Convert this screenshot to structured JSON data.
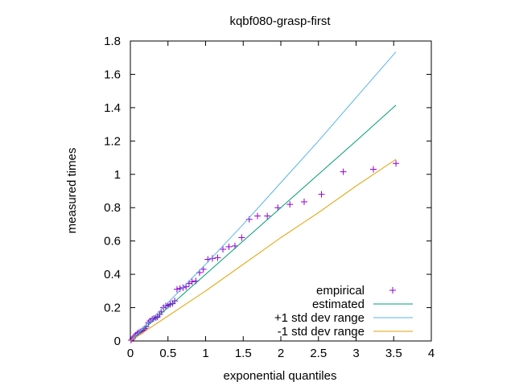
{
  "chart_data": {
    "type": "scatter",
    "title": "kqbf080-grasp-first",
    "xlabel": "exponential quantiles",
    "ylabel": "measured times",
    "xlim": [
      0,
      4
    ],
    "ylim": [
      0,
      1.8
    ],
    "xticks": [
      "0",
      "0.5",
      "1",
      "1.5",
      "2",
      "2.5",
      "3",
      "3.5",
      "4"
    ],
    "yticks": [
      "0",
      "0.2",
      "0.4",
      "0.6",
      "0.8",
      "1",
      "1.2",
      "1.4",
      "1.6",
      "1.8"
    ],
    "grid": false,
    "legend_position": "bottom-right",
    "series": [
      {
        "name": "empirical",
        "kind": "points",
        "marker": "+",
        "color": "#9400d3",
        "points": [
          [
            0.01,
            0.005
          ],
          [
            0.03,
            0.015
          ],
          [
            0.05,
            0.025
          ],
          [
            0.07,
            0.035
          ],
          [
            0.09,
            0.045
          ],
          [
            0.11,
            0.05
          ],
          [
            0.13,
            0.055
          ],
          [
            0.15,
            0.06
          ],
          [
            0.17,
            0.065
          ],
          [
            0.19,
            0.075
          ],
          [
            0.21,
            0.085
          ],
          [
            0.24,
            0.11
          ],
          [
            0.26,
            0.12
          ],
          [
            0.29,
            0.13
          ],
          [
            0.31,
            0.135
          ],
          [
            0.34,
            0.14
          ],
          [
            0.36,
            0.145
          ],
          [
            0.39,
            0.16
          ],
          [
            0.41,
            0.175
          ],
          [
            0.44,
            0.2
          ],
          [
            0.47,
            0.21
          ],
          [
            0.5,
            0.215
          ],
          [
            0.53,
            0.22
          ],
          [
            0.56,
            0.225
          ],
          [
            0.59,
            0.24
          ],
          [
            0.62,
            0.31
          ],
          [
            0.66,
            0.315
          ],
          [
            0.7,
            0.32
          ],
          [
            0.74,
            0.325
          ],
          [
            0.78,
            0.345
          ],
          [
            0.82,
            0.355
          ],
          [
            0.87,
            0.36
          ],
          [
            0.92,
            0.41
          ],
          [
            0.97,
            0.43
          ],
          [
            1.03,
            0.49
          ],
          [
            1.09,
            0.495
          ],
          [
            1.16,
            0.5
          ],
          [
            1.23,
            0.55
          ],
          [
            1.31,
            0.565
          ],
          [
            1.39,
            0.57
          ],
          [
            1.48,
            0.62
          ],
          [
            1.58,
            0.73
          ],
          [
            1.69,
            0.75
          ],
          [
            1.82,
            0.75
          ],
          [
            1.96,
            0.8
          ],
          [
            2.12,
            0.82
          ],
          [
            2.31,
            0.835
          ],
          [
            2.54,
            0.88
          ],
          [
            2.83,
            1.015
          ],
          [
            3.23,
            1.03
          ],
          [
            3.53,
            1.065
          ]
        ]
      },
      {
        "name": "estimated",
        "kind": "line",
        "color": "#009e73",
        "points": [
          [
            0,
            0
          ],
          [
            0.5,
            0.2
          ],
          [
            1.0,
            0.4
          ],
          [
            1.5,
            0.6
          ],
          [
            2.0,
            0.8
          ],
          [
            2.5,
            1.0
          ],
          [
            3.0,
            1.2
          ],
          [
            3.53,
            1.415
          ]
        ]
      },
      {
        "name": "+1 std dev range",
        "kind": "line",
        "color": "#56b4e9",
        "points": [
          [
            0,
            0.0
          ],
          [
            0.5,
            0.23
          ],
          [
            1.0,
            0.46
          ],
          [
            1.5,
            0.7
          ],
          [
            2.0,
            0.95
          ],
          [
            2.5,
            1.2
          ],
          [
            3.0,
            1.46
          ],
          [
            3.53,
            1.735
          ]
        ]
      },
      {
        "name": "-1 std dev range",
        "kind": "line",
        "color": "#e69f00",
        "points": [
          [
            0,
            0.0
          ],
          [
            0.5,
            0.15
          ],
          [
            1.0,
            0.3
          ],
          [
            1.5,
            0.46
          ],
          [
            2.0,
            0.62
          ],
          [
            2.5,
            0.77
          ],
          [
            3.0,
            0.93
          ],
          [
            3.53,
            1.09
          ]
        ]
      }
    ]
  }
}
